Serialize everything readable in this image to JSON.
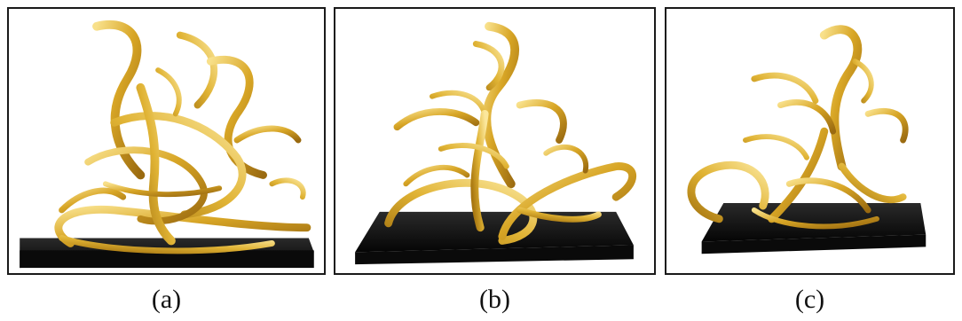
{
  "panels": [
    {
      "id": "a",
      "caption": "(a)"
    },
    {
      "id": "b",
      "caption": "(b)"
    },
    {
      "id": "c",
      "caption": "(c)"
    }
  ],
  "colors": {
    "gold_light": "#f6d66b",
    "gold_mid": "#d8a626",
    "gold_dark": "#9a6a10",
    "base_black": "#141414",
    "frame": "#1a1a1a"
  }
}
